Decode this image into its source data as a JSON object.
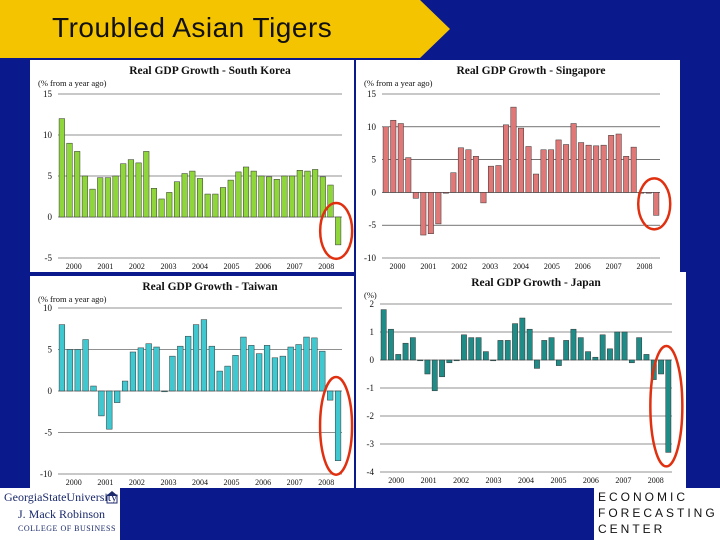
{
  "slide": {
    "title": "Troubled Asian Tigers",
    "colors": {
      "background": "#0a1a8c",
      "title_band": "#f5c400",
      "highlight_ellipse": "#e03010"
    },
    "logo_left": {
      "line1": "GeorgiaStateUniversity",
      "line2": "J. Mack Robinson",
      "line3": "COLLEGE OF BUSINESS",
      "icon": "gsu-building-icon"
    },
    "logo_right": {
      "line1": "ECONOMIC",
      "line2": "FORECASTING",
      "line3": "CENTER"
    }
  },
  "chart_data": [
    {
      "type": "bar",
      "title": "Real GDP Growth - South Korea",
      "ylabel": "(% from a year ago)",
      "ylim": [
        -5,
        15
      ],
      "yticks": [
        15,
        10,
        5,
        0,
        -5
      ],
      "xticks": [
        "2000",
        "2001",
        "2002",
        "2003",
        "2004",
        "2005",
        "2006",
        "2007",
        "2008"
      ],
      "x_start": 2000,
      "color": "#8fd63a",
      "values": [
        12.0,
        9.0,
        8.0,
        5.0,
        3.4,
        4.8,
        4.8,
        5.0,
        6.5,
        7.0,
        6.6,
        8.0,
        3.5,
        2.2,
        3.0,
        4.3,
        5.3,
        5.6,
        4.7,
        2.8,
        2.8,
        3.6,
        4.5,
        5.5,
        6.1,
        5.6,
        5.0,
        4.9,
        4.6,
        5.0,
        5.0,
        5.7,
        5.6,
        5.8,
        4.9,
        3.9,
        -3.4
      ],
      "highlight_last": true
    },
    {
      "type": "bar",
      "title": "Real GDP Growth - Singapore",
      "ylabel": "(% from a year ago)",
      "ylim": [
        -10,
        15
      ],
      "yticks": [
        15,
        10,
        5,
        0,
        -5,
        -10
      ],
      "xticks": [
        "2000",
        "2001",
        "2002",
        "2003",
        "2004",
        "2005",
        "2006",
        "2007",
        "2008"
      ],
      "x_start": 2000,
      "color": "#e07878",
      "values": [
        10.0,
        11.0,
        10.5,
        5.3,
        -0.9,
        -6.5,
        -6.3,
        -4.8,
        0.0,
        3.0,
        6.8,
        6.5,
        5.5,
        -1.6,
        4.0,
        4.1,
        10.3,
        13.0,
        9.8,
        7.0,
        2.8,
        6.5,
        6.5,
        8.0,
        7.3,
        10.5,
        7.6,
        7.2,
        7.1,
        7.2,
        8.7,
        8.9,
        5.5,
        6.9,
        0.0,
        0.0,
        -3.5
      ],
      "highlight_last": true
    },
    {
      "type": "bar",
      "title": "Real GDP Growth - Taiwan",
      "ylabel": "(% from a year ago)",
      "ylim": [
        -10,
        10
      ],
      "yticks": [
        10,
        5,
        0,
        -5,
        -10
      ],
      "xticks": [
        "2000",
        "2001",
        "2002",
        "2003",
        "2004",
        "2005",
        "2006",
        "2007",
        "2008"
      ],
      "x_start": 2000,
      "color": "#40c8d0",
      "values": [
        8.0,
        5.0,
        5.0,
        6.2,
        0.6,
        -3.0,
        -4.6,
        -1.4,
        1.2,
        4.7,
        5.2,
        5.7,
        5.3,
        0.0,
        4.2,
        5.4,
        6.6,
        8.0,
        8.6,
        5.4,
        2.4,
        3.0,
        4.3,
        6.5,
        5.5,
        4.5,
        5.5,
        4.0,
        4.2,
        5.3,
        5.6,
        6.5,
        6.4,
        4.8,
        -1.1,
        -8.4
      ],
      "highlight_last": true
    },
    {
      "type": "bar",
      "title": "Real GDP Growth - Japan",
      "ylabel": "(%)",
      "ylim": [
        -4,
        2
      ],
      "yticks": [
        2,
        1,
        0,
        -1,
        -2,
        -3,
        -4
      ],
      "xticks": [
        "2000",
        "2001",
        "2002",
        "2003",
        "2004",
        "2005",
        "2006",
        "2007",
        "2008"
      ],
      "x_start": 2000,
      "color": "#1f8c88",
      "values": [
        1.8,
        1.1,
        0.2,
        0.6,
        0.8,
        0.0,
        -0.5,
        -1.1,
        -0.6,
        -0.1,
        0.0,
        0.9,
        0.8,
        0.8,
        0.3,
        0.0,
        0.7,
        0.7,
        1.3,
        1.5,
        1.1,
        -0.3,
        0.7,
        0.8,
        -0.2,
        0.7,
        1.1,
        0.8,
        0.3,
        0.1,
        0.9,
        0.4,
        1.0,
        1.0,
        -0.1,
        0.8,
        0.2,
        -0.7,
        -0.5,
        -3.3
      ],
      "highlight_last": true
    }
  ]
}
